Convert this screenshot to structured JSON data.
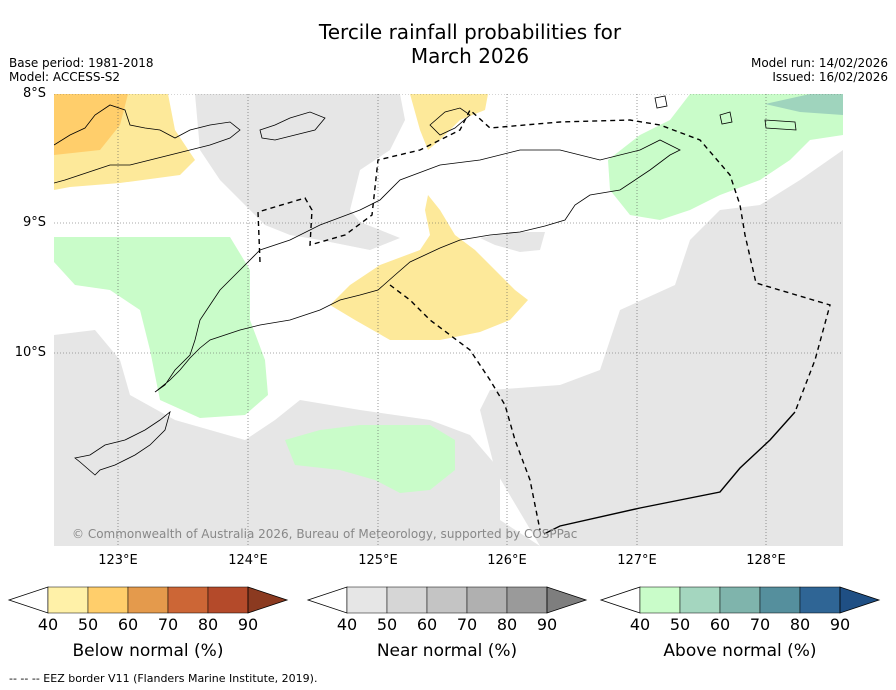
{
  "title_line1": "Tercile rainfall probabilities for",
  "title_line2": "March 2026",
  "base_period": "Base period: 1981-2018",
  "model": "Model: ACCESS-S2",
  "model_run": "Model run: 14/02/2026",
  "issued": "Issued: 16/02/2026",
  "latitudes": [
    "8°S",
    "9°S",
    "10°S"
  ],
  "longitudes": [
    "123°E",
    "124°E",
    "125°E",
    "126°E",
    "127°E",
    "128°E"
  ],
  "copyright": "© Commonwealth of Australia 2026, Bureau of Meteorology, supported by COSPPac",
  "colorbars": [
    {
      "label": "Below normal (%)",
      "ticks": [
        "40",
        "50",
        "60",
        "70",
        "80",
        "90"
      ],
      "colors": [
        "#ffffff",
        "#fff1a8",
        "#ffce6b",
        "#e49a4c",
        "#cc6636",
        "#b44a2a",
        "#8b3a20"
      ]
    },
    {
      "label": "Near normal (%)",
      "ticks": [
        "40",
        "50",
        "60",
        "70",
        "80",
        "90"
      ],
      "colors": [
        "#ffffff",
        "#e6e6e6",
        "#d6d6d6",
        "#c4c4c4",
        "#b0b0b0",
        "#9a9a9a",
        "#7e7e7e"
      ]
    },
    {
      "label": "Above normal (%)",
      "ticks": [
        "40",
        "50",
        "60",
        "70",
        "80",
        "90"
      ],
      "colors": [
        "#ffffff",
        "#c9fcc9",
        "#a4d6bf",
        "#7fb4ac",
        "#558f9d",
        "#2f6595",
        "#1f4f84"
      ]
    }
  ],
  "footer": "--  --  -- EEZ border V11 (Flanders Marine Institute, 2019).",
  "colors": {
    "below": "#fde99a",
    "below_dark": "#ffce6b",
    "near": "#e6e6e6",
    "above": "#c9fcc9",
    "above_dark": "#9fd4bd"
  }
}
